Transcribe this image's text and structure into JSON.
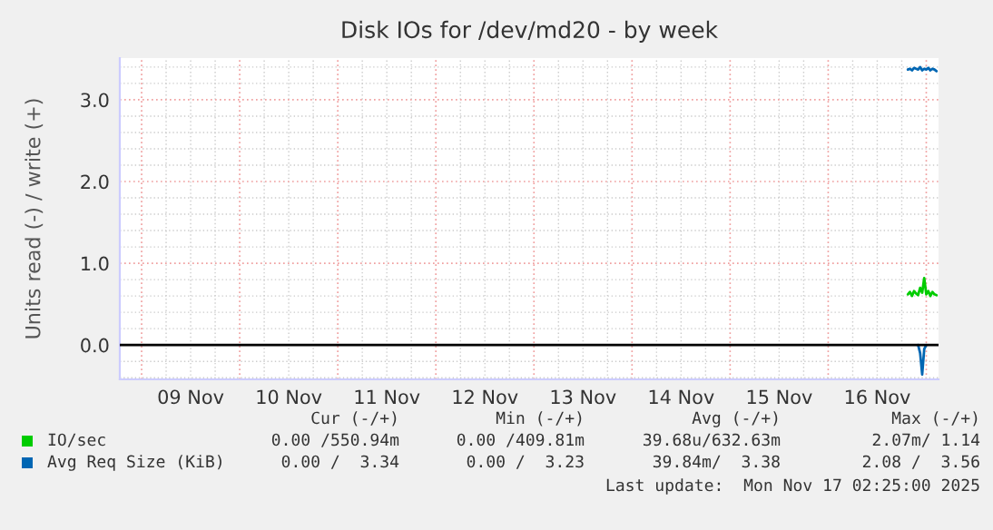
{
  "chart_data": {
    "type": "line",
    "title": "Disk IOs for /dev/md20 - by week",
    "ylabel": "Units read (-) / write (+)",
    "x": [
      "2025-11-16T19:30",
      "2025-11-16T20:00",
      "2025-11-16T20:30",
      "2025-11-16T21:00",
      "2025-11-16T21:30",
      "2025-11-16T22:00",
      "2025-11-16T22:30",
      "2025-11-16T23:00",
      "2025-11-16T23:30",
      "2025-11-17T00:00",
      "2025-11-17T00:30",
      "2025-11-17T01:00",
      "2025-11-17T01:30",
      "2025-11-17T02:00",
      "2025-11-17T02:30"
    ],
    "series": [
      {
        "name": "IO/sec",
        "color": "#00cc00",
        "values": [
          0.62,
          0.65,
          0.6,
          0.66,
          0.63,
          0.61,
          0.7,
          0.64,
          0.82,
          0.62,
          0.66,
          0.6,
          0.65,
          0.62,
          0.61
        ]
      },
      {
        "name": "Avg Req Size (KiB)",
        "color": "#0066b3",
        "values": [
          3.37,
          3.38,
          3.36,
          3.39,
          3.38,
          3.37,
          3.4,
          3.36,
          3.38,
          3.37,
          3.39,
          3.36,
          3.38,
          3.37,
          3.35
        ]
      },
      {
        "color": "#0066b3",
        "values": [
          null,
          null,
          null,
          null,
          null,
          0,
          -0.1,
          -0.36,
          -0.05,
          0,
          null,
          null,
          null,
          null,
          null
        ]
      }
    ],
    "xlim": [
      "2025-11-08T18:40",
      "2025-11-17T03:00"
    ],
    "xticks": [
      {
        "value": "2025-11-09T12:00",
        "label": "09 Nov"
      },
      {
        "value": "2025-11-10T12:00",
        "label": "10 Nov"
      },
      {
        "value": "2025-11-11T12:00",
        "label": "11 Nov"
      },
      {
        "value": "2025-11-12T12:00",
        "label": "12 Nov"
      },
      {
        "value": "2025-11-13T12:00",
        "label": "13 Nov"
      },
      {
        "value": "2025-11-14T12:00",
        "label": "14 Nov"
      },
      {
        "value": "2025-11-15T12:00",
        "label": "15 Nov"
      },
      {
        "value": "2025-11-16T12:00",
        "label": "16 Nov"
      }
    ],
    "ylim": [
      -0.42,
      3.51
    ],
    "yticks": [
      {
        "value": 0,
        "label": "0.0"
      },
      {
        "value": 1,
        "label": "1.0"
      },
      {
        "value": 2,
        "label": "2.0"
      },
      {
        "value": 3,
        "label": "3.0"
      }
    ],
    "ref_lines": [
      {
        "axis": "y",
        "value": 0,
        "color": "#000000"
      }
    ],
    "grid": true,
    "legend": "bottom",
    "annotations": [
      "Cur (-/+)",
      "Min (-/+)",
      "Avg (-/+)",
      "Max (-/+)",
      "0.00 /550.94m",
      "0.00 /409.81m",
      "39.68u/632.63m",
      "2.07m/ 1.14",
      "0.00 /  3.34",
      "0.00 /  3.23",
      "39.84m/  3.38",
      "2.08 /  3.56",
      "Last update:  Mon Nov 17 02:25:00 2025"
    ]
  }
}
